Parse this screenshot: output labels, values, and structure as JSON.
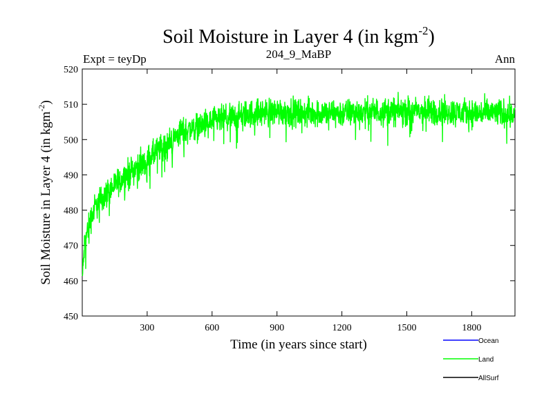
{
  "chart_data": {
    "type": "line",
    "title": "Soil Moisture in Layer 4 (in kgm",
    "title_sup": "-2",
    "title_close": ")",
    "subtitle_left": "Expt = teyDp",
    "subtitle_center": "204_9_MaBP",
    "subtitle_right": "Ann",
    "xlabel": "Time (in years since start)",
    "ylabel": "Soil Moisture in Layer 4 (in kgm",
    "ylabel_sup": "-2",
    "ylabel_close": ")",
    "xlim": [
      0,
      2000
    ],
    "ylim": [
      450,
      520
    ],
    "xticks": [
      300,
      600,
      900,
      1200,
      1500,
      1800
    ],
    "yticks": [
      450,
      460,
      470,
      480,
      490,
      500,
      510,
      520
    ],
    "grid": false,
    "legend_position": "below-right",
    "series": [
      {
        "name": "Ocean",
        "color": "#0000ff",
        "values": []
      },
      {
        "name": "Land",
        "color": "#00ff00",
        "noise_amplitude": 3,
        "trend_x": [
          0,
          10,
          30,
          60,
          100,
          150,
          200,
          250,
          300,
          350,
          400,
          450,
          500,
          550,
          600,
          700,
          800,
          900,
          1000,
          1200,
          1400,
          1600,
          1800,
          2000
        ],
        "trend_y": [
          460,
          470,
          476,
          481,
          484,
          487,
          490,
          492,
          494,
          497,
          499,
          502,
          503,
          504,
          505,
          506.5,
          507.5,
          508,
          507.5,
          507.5,
          508,
          508,
          507.5,
          507.5
        ]
      },
      {
        "name": "AllSurf",
        "color": "#000000",
        "values": []
      }
    ]
  }
}
